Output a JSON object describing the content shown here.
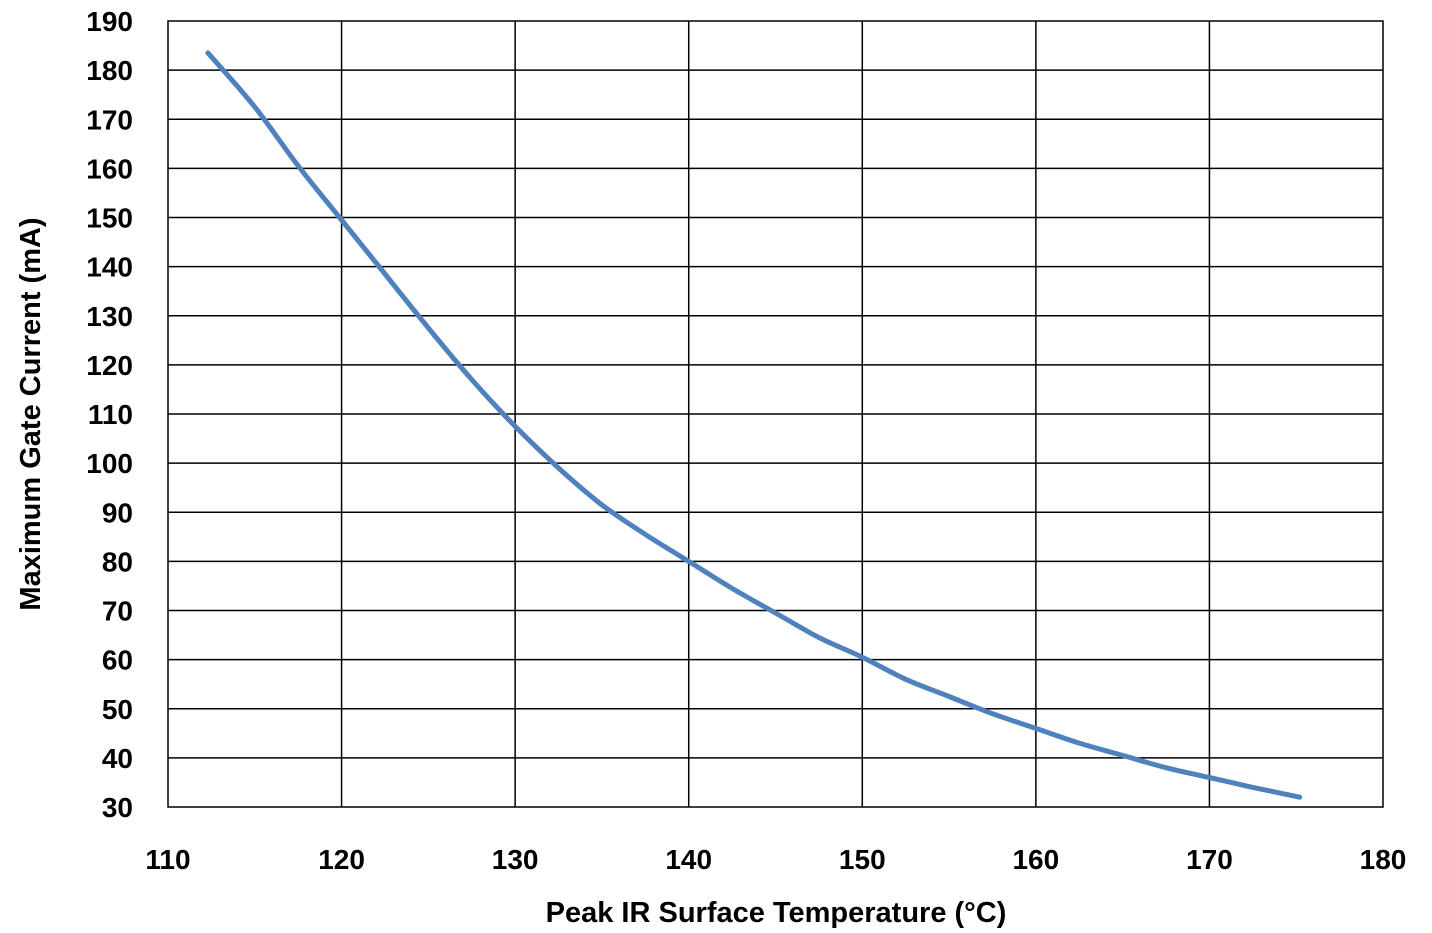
{
  "chart_data": {
    "type": "line",
    "title": "",
    "xlabel": "Peak IR Surface Temperature (°C)",
    "ylabel": "Maximum Gate Current (mA)",
    "xlim": [
      110,
      180
    ],
    "ylim": [
      30,
      190
    ],
    "x_ticks": [
      "110",
      "120",
      "130",
      "140",
      "150",
      "160",
      "170",
      "180"
    ],
    "y_ticks": [
      "30",
      "40",
      "50",
      "60",
      "70",
      "80",
      "90",
      "100",
      "110",
      "120",
      "130",
      "140",
      "150",
      "160",
      "170",
      "180",
      "190"
    ],
    "grid": true,
    "legend": "none",
    "series": [
      {
        "color": "#4f81bd",
        "x": [
          112.3,
          115,
          117.5,
          120,
          122.5,
          125,
          127.5,
          130,
          132.5,
          135,
          137.5,
          140,
          142.5,
          145,
          147.5,
          150,
          152.5,
          155,
          157.5,
          160,
          162.5,
          165,
          167.5,
          170,
          172.5,
          175.2
        ],
        "y": [
          183.5,
          172.5,
          160.5,
          149.5,
          138.5,
          127.5,
          117,
          107.5,
          99,
          91.5,
          85.5,
          80,
          74.5,
          69.5,
          64.5,
          60.5,
          56,
          52.5,
          49,
          46,
          43,
          40.5,
          38,
          36,
          34,
          32
        ]
      }
    ]
  }
}
